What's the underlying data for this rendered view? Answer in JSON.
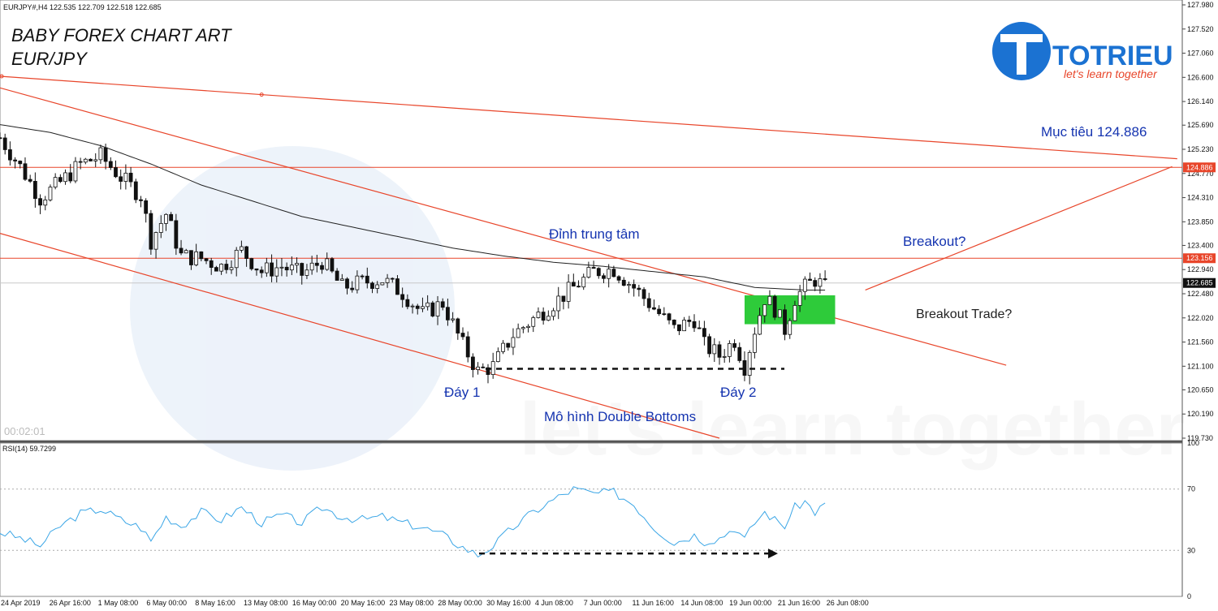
{
  "header": {
    "symbol_info": "EURJPY#,H4  122.535 122.709 122.518 122.685",
    "title_line1": "BABY FOREX CHART ART",
    "title_line2": "EUR/JPY",
    "timer": "00:02:01"
  },
  "logo": {
    "brand": "TOTRIEU",
    "tagline": "let's learn together",
    "watermark": "let's learn together"
  },
  "annotations": {
    "target": "Mục tiêu 124.886",
    "center_peak": "Đỉnh trung tâm",
    "breakout": "Breakout?",
    "breakout_trade": "Breakout Trade?",
    "bottom1": "Đáy 1",
    "bottom2": "Đáy 2",
    "pattern": "Mô hình Double Bottoms"
  },
  "colors": {
    "candle": "#111111",
    "ma_line": "#222222",
    "trendline": "#e8452a",
    "resistance": "#e8452a",
    "rsi_line": "#3ba6e6",
    "breakout_zone": "#2ecb3a",
    "annotation_text": "#1534b0",
    "watermark": "#e6eef8"
  },
  "chart_data": [
    {
      "type": "candlestick",
      "symbol": "EURJPY#",
      "timeframe": "H4",
      "ylim": [
        119.73,
        127.98
      ],
      "y_ticks": [
        "127.980",
        "127.520",
        "127.060",
        "126.600",
        "126.140",
        "125.690",
        "125.230",
        "124.770",
        "124.310",
        "123.850",
        "123.400",
        "122.940",
        "122.480",
        "122.020",
        "121.560",
        "121.100",
        "120.650",
        "120.190",
        "119.730"
      ],
      "x_ticks": [
        "24 Apr 2019",
        "26 Apr 16:00",
        "1 May 08:00",
        "6 May 00:00",
        "8 May 16:00",
        "13 May 08:00",
        "16 May 00:00",
        "20 May 16:00",
        "23 May 08:00",
        "28 May 00:00",
        "30 May 16:00",
        "4 Jun 08:00",
        "7 Jun 00:00",
        "11 Jun 16:00",
        "14 Jun 08:00",
        "19 Jun 00:00",
        "21 Jun 16:00",
        "26 Jun 08:00"
      ],
      "levels": [
        {
          "label": "124.886",
          "value": 124.886
        },
        {
          "label": "123.156",
          "value": 123.156
        },
        {
          "label": "122.685",
          "value": 122.685
        }
      ],
      "close_path": [
        [
          0,
          125.45
        ],
        [
          4,
          124.9
        ],
        [
          8,
          124.3
        ],
        [
          12,
          124.6
        ],
        [
          16,
          124.95
        ],
        [
          20,
          125.1
        ],
        [
          24,
          124.7
        ],
        [
          28,
          124.35
        ],
        [
          30,
          123.5
        ],
        [
          33,
          124.0
        ],
        [
          36,
          123.2
        ],
        [
          40,
          123.15
        ],
        [
          44,
          123.0
        ],
        [
          48,
          123.3
        ],
        [
          52,
          122.9
        ],
        [
          56,
          123.0
        ],
        [
          60,
          122.85
        ],
        [
          64,
          123.1
        ],
        [
          68,
          122.6
        ],
        [
          72,
          122.7
        ],
        [
          76,
          122.75
        ],
        [
          80,
          122.5
        ],
        [
          84,
          122.1
        ],
        [
          88,
          122.3
        ],
        [
          92,
          121.5
        ],
        [
          95,
          121.0
        ],
        [
          98,
          121.1
        ],
        [
          102,
          121.7
        ],
        [
          106,
          122.0
        ],
        [
          110,
          122.3
        ],
        [
          114,
          122.6
        ],
        [
          118,
          122.9
        ],
        [
          122,
          122.95
        ],
        [
          126,
          122.6
        ],
        [
          130,
          122.2
        ],
        [
          134,
          121.8
        ],
        [
          138,
          122.0
        ],
        [
          140,
          121.5
        ],
        [
          143,
          121.3
        ],
        [
          146,
          121.6
        ],
        [
          148,
          121.1
        ],
        [
          150,
          121.8
        ],
        [
          152,
          122.4
        ],
        [
          154,
          122.2
        ],
        [
          156,
          121.8
        ],
        [
          158,
          122.4
        ],
        [
          160,
          122.6
        ],
        [
          162,
          122.75
        ],
        [
          164,
          122.6
        ]
      ],
      "ma_path": [
        [
          0,
          125.7
        ],
        [
          10,
          125.55
        ],
        [
          20,
          125.3
        ],
        [
          30,
          124.95
        ],
        [
          40,
          124.55
        ],
        [
          50,
          124.25
        ],
        [
          60,
          123.95
        ],
        [
          70,
          123.75
        ],
        [
          80,
          123.55
        ],
        [
          90,
          123.35
        ],
        [
          100,
          123.2
        ],
        [
          110,
          123.08
        ],
        [
          120,
          123.0
        ],
        [
          130,
          122.9
        ],
        [
          140,
          122.8
        ],
        [
          150,
          122.6
        ],
        [
          160,
          122.55
        ],
        [
          164,
          122.55
        ]
      ],
      "trendlines": [
        {
          "from": [
            0,
            126.62
          ],
          "to": [
            234,
            125.05
          ]
        },
        {
          "from": [
            0,
            126.4
          ],
          "to": [
            200,
            121.12
          ]
        },
        {
          "from": [
            0,
            123.63
          ],
          "to": [
            143,
            119.73
          ]
        },
        {
          "from": [
            172,
            122.55
          ],
          "to": [
            233,
            124.9
          ]
        }
      ],
      "double_bottom_level": 121.05
    },
    {
      "type": "line",
      "title": "RSI(14) 59.7299",
      "ylim": [
        0,
        100
      ],
      "y_ticks": [
        "100",
        "70",
        "30",
        "0"
      ],
      "series": [
        {
          "values": [
            [
              0,
              42
            ],
            [
              4,
              38
            ],
            [
              8,
              33
            ],
            [
              12,
              46
            ],
            [
              16,
              54
            ],
            [
              20,
              57
            ],
            [
              24,
              50
            ],
            [
              28,
              45
            ],
            [
              30,
              36
            ],
            [
              33,
              52
            ],
            [
              36,
              46
            ],
            [
              40,
              55
            ],
            [
              44,
              50
            ],
            [
              48,
              58
            ],
            [
              52,
              48
            ],
            [
              56,
              53
            ],
            [
              60,
              48
            ],
            [
              64,
              58
            ],
            [
              68,
              52
            ],
            [
              72,
              50
            ],
            [
              76,
              52
            ],
            [
              80,
              48
            ],
            [
              84,
              45
            ],
            [
              88,
              40
            ],
            [
              92,
              32
            ],
            [
              95,
              27
            ],
            [
              98,
              33
            ],
            [
              102,
              45
            ],
            [
              106,
              55
            ],
            [
              110,
              63
            ],
            [
              114,
              70
            ],
            [
              118,
              67
            ],
            [
              122,
              68
            ],
            [
              126,
              60
            ],
            [
              130,
              45
            ],
            [
              134,
              35
            ],
            [
              138,
              40
            ],
            [
              140,
              36
            ],
            [
              143,
              38
            ],
            [
              146,
              45
            ],
            [
              148,
              37
            ],
            [
              150,
              48
            ],
            [
              152,
              55
            ],
            [
              154,
              50
            ],
            [
              156,
              46
            ],
            [
              158,
              58
            ],
            [
              160,
              62
            ],
            [
              162,
              55
            ],
            [
              164,
              60
            ]
          ]
        }
      ]
    }
  ]
}
